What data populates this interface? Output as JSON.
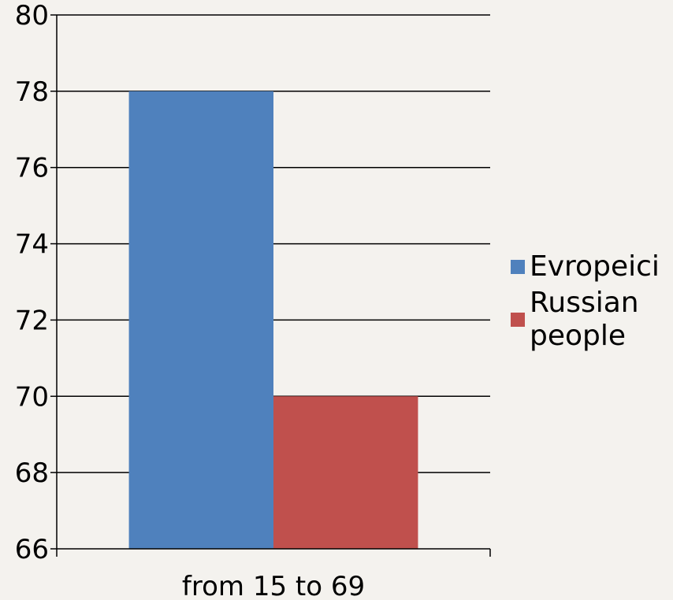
{
  "chart_data": {
    "type": "bar",
    "categories": [
      "from 15 to 69"
    ],
    "series": [
      {
        "name": "Evropeici",
        "values": [
          78
        ],
        "color": "#4f81bd"
      },
      {
        "name": "Russian people",
        "values": [
          70
        ],
        "color": "#c0504d"
      }
    ],
    "ylim": [
      66,
      80
    ],
    "yticks": [
      66,
      68,
      70,
      72,
      74,
      76,
      78,
      80
    ],
    "grid": true,
    "legend_position": "right"
  }
}
